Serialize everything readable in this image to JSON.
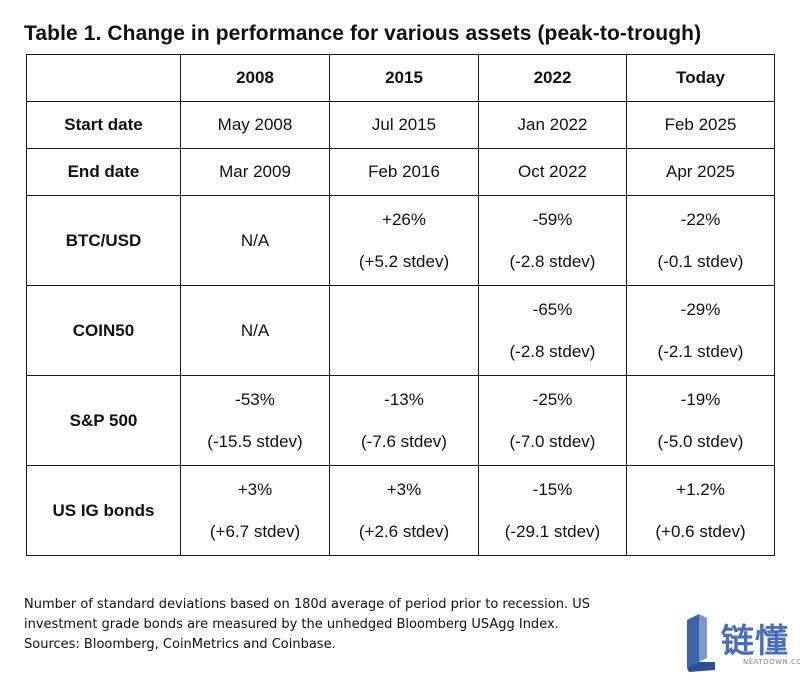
{
  "title": "Table 1. Change in performance for various assets (peak-to-trough)",
  "table": {
    "columns": [
      "",
      "2008",
      "2015",
      "2022",
      "Today"
    ],
    "rows": [
      {
        "label": "Start date",
        "cells": [
          {
            "value": "May 2008"
          },
          {
            "value": "Jul 2015"
          },
          {
            "value": "Jan 2022"
          },
          {
            "value": "Feb 2025"
          }
        ]
      },
      {
        "label": "End date",
        "cells": [
          {
            "value": "Mar 2009"
          },
          {
            "value": "Feb 2016"
          },
          {
            "value": "Oct 2022"
          },
          {
            "value": "Apr 2025"
          }
        ]
      },
      {
        "label": "BTC/USD",
        "cells": [
          {
            "value": "N/A",
            "stdev": ""
          },
          {
            "value": "+26%",
            "stdev": "(+5.2 stdev)"
          },
          {
            "value": "-59%",
            "stdev": "(-2.8 stdev)"
          },
          {
            "value": "-22%",
            "stdev": "(-0.1 stdev)"
          }
        ]
      },
      {
        "label": "COIN50",
        "cells": [
          {
            "value": "N/A",
            "stdev": ""
          },
          {
            "value": "",
            "stdev": ""
          },
          {
            "value": "-65%",
            "stdev": "(-2.8 stdev)"
          },
          {
            "value": "-29%",
            "stdev": "(-2.1 stdev)"
          }
        ]
      },
      {
        "label": "S&P 500",
        "cells": [
          {
            "value": "-53%",
            "stdev": "(-15.5 stdev)"
          },
          {
            "value": "-13%",
            "stdev": "(-7.6 stdev)"
          },
          {
            "value": "-25%",
            "stdev": "(-7.0 stdev)"
          },
          {
            "value": "-19%",
            "stdev": "(-5.0 stdev)"
          }
        ]
      },
      {
        "label": "US IG bonds",
        "cells": [
          {
            "value": "+3%",
            "stdev": "(+6.7 stdev)"
          },
          {
            "value": "+3%",
            "stdev": "(+2.6 stdev)"
          },
          {
            "value": "-15%",
            "stdev": "(-29.1 stdev)"
          },
          {
            "value": "+1.2%",
            "stdev": "(+0.6 stdev)"
          }
        ]
      }
    ]
  },
  "footnote": {
    "line1": "Number of standard deviations based on 180d average of period prior to recession. US",
    "line2": "investment grade bonds are measured by the unhedged Bloomberg USAgg Index.",
    "line3": "Sources: Bloomberg, CoinMetrics and Coinbase."
  },
  "watermark": {
    "text_cn": "链懂",
    "text_en": "NEATDOWN.COM",
    "color": "#4a6fb5"
  }
}
